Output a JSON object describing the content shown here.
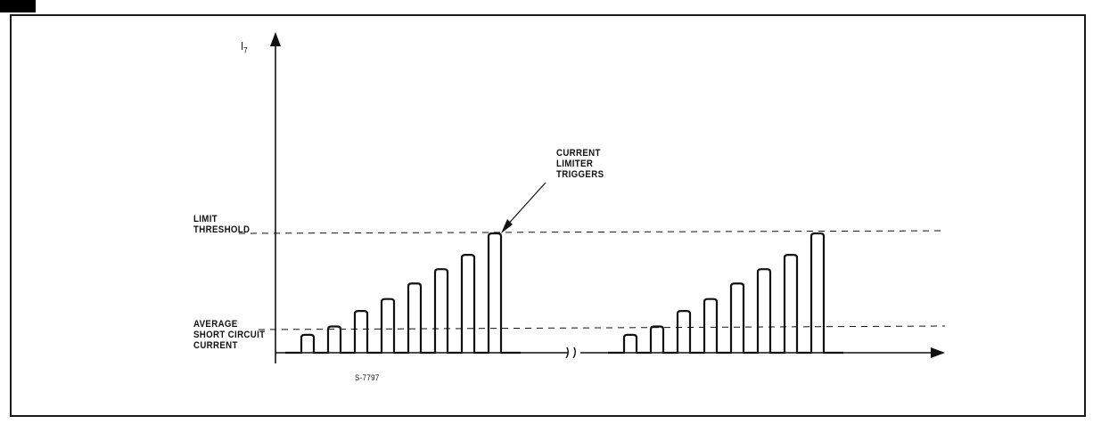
{
  "figure": {
    "y_axis_label": "I",
    "y_axis_subscript": "7",
    "limit_threshold_label": "LIMIT\nTHRESHOLD",
    "average_label": "AVERAGE\nSHORT CIRCUIT\nCURRENT",
    "trigger_annotation": "CURRENT\nLIMITER\nTRIGGERS",
    "figure_code": "S-7797",
    "colors": {
      "ink": "#111111",
      "background": "#ffffff"
    },
    "pulse_levels_per_cycle": [
      0.15,
      0.22,
      0.35,
      0.45,
      0.58,
      0.7,
      0.82,
      1.0
    ]
  }
}
